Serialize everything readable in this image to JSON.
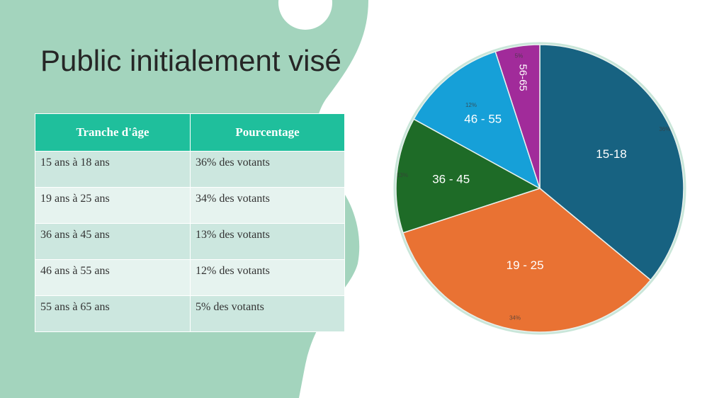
{
  "slide": {
    "title": "Public initialement visé"
  },
  "table": {
    "headers": [
      "Tranche d'âge",
      "Pourcentage"
    ],
    "rows": [
      [
        "15 ans à 18 ans",
        "36% des votants"
      ],
      [
        "19 ans à 25 ans",
        "34% des votants"
      ],
      [
        "36 ans à 45 ans",
        "13% des votants"
      ],
      [
        "46 ans à 55 ans",
        "12% des votants"
      ],
      [
        "55 ans à 65 ans",
        "5% des votants"
      ]
    ]
  },
  "chart_data": {
    "type": "pie",
    "categories": [
      "15-18",
      "19 - 25",
      "36 - 45",
      "46 - 55",
      "56-65"
    ],
    "values": [
      36,
      34,
      13,
      12,
      5
    ],
    "percent_labels": [
      "36%",
      "34%",
      "13%",
      "12%",
      "5%"
    ],
    "colors": [
      "#176281",
      "#e97233",
      "#1e6b27",
      "#16a0d8",
      "#a12b9a"
    ],
    "title": ""
  },
  "colors": {
    "accent": "#1fbf9c",
    "background_shape": "#a3d4bd"
  }
}
